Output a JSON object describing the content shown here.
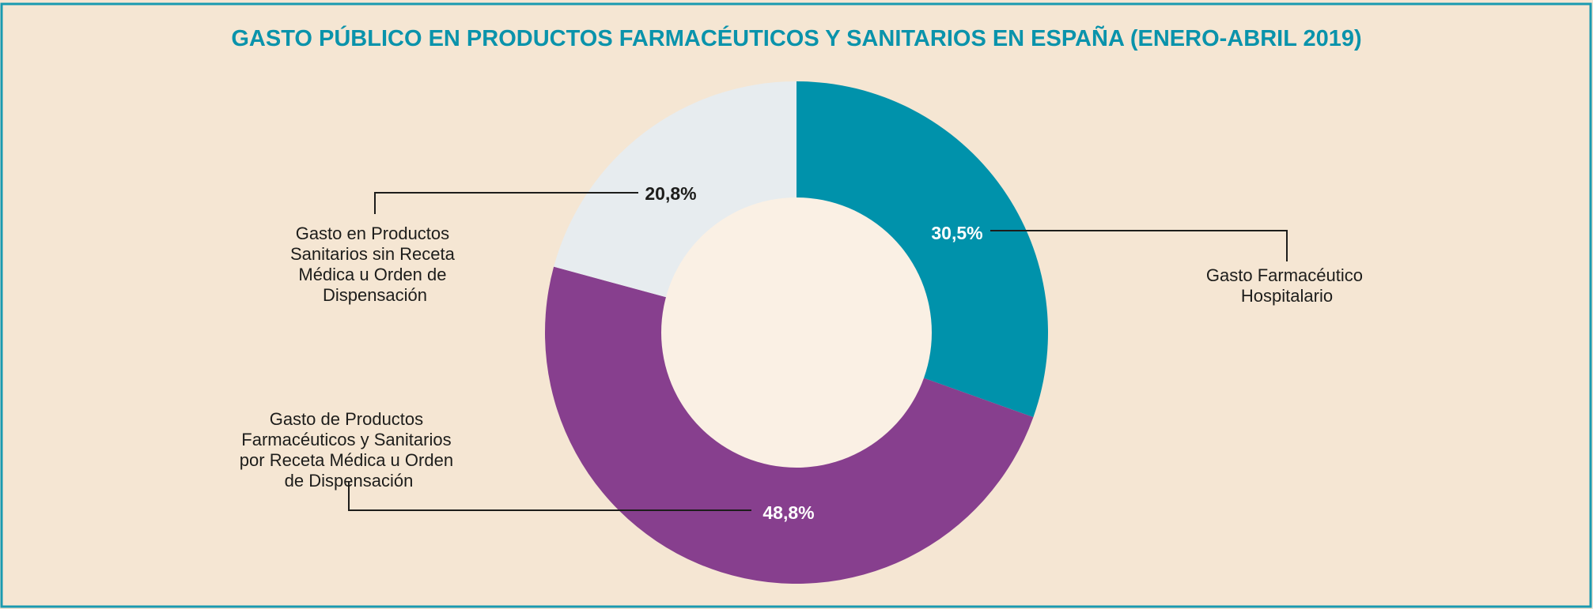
{
  "chart_data": {
    "type": "pie",
    "variant": "donut",
    "title": "GASTO PÚBLICO EN PRODUCTOS FARMACÉUTICOS Y SANITARIOS EN ESPAÑA (ENERO-ABRIL 2019)",
    "unit": "%",
    "start_angle": "top, clockwise",
    "slices": [
      {
        "label_lines": [
          "Gasto Farmacéutico",
          "Hospitalario"
        ],
        "value": 30.5,
        "value_label": "30,5%",
        "color": "#0092ab",
        "value_color": "#ffffff"
      },
      {
        "label_lines": [
          "Gasto de Productos",
          "Farmacéuticos y Sanitarios",
          "por Receta Médica u Orden",
          "de Dispensación"
        ],
        "value": 48.8,
        "value_label": "48,8%",
        "color": "#873f8e",
        "value_color": "#ffffff"
      },
      {
        "label_lines": [
          "Gasto en Productos",
          "Sanitarios sin Receta",
          "Médica u Orden de",
          "Dispensación"
        ],
        "value": 20.8,
        "value_label": "20,8%",
        "color": "#e7ecef",
        "value_color": "#1d1d1b"
      }
    ],
    "legend": "none (callout labels)"
  },
  "colors": {
    "background": "#f5e6d3",
    "border": "#1a9ab0",
    "title": "#0a93ab",
    "donut_hole": "#faf0e4"
  }
}
